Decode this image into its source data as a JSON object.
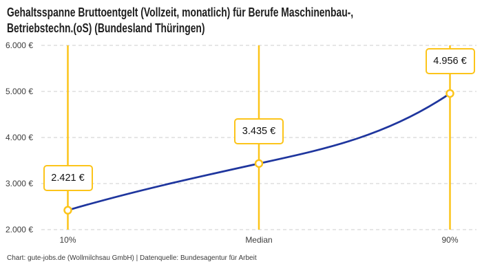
{
  "header": {
    "title_line1": "Gehaltsspanne Bruttoentgelt (Vollzeit, monatlich) für Berufe Maschinenbau-,",
    "title_line2": "Betriebstechn.(oS) (Bundesland Thüringen)"
  },
  "footer": {
    "credit": "Chart: gute-jobs.de (Wollmilchsau GmbH) | Datenquelle: Bundesagentur für Arbeit"
  },
  "chart_data": {
    "type": "line",
    "subtype": "spline",
    "title": "Gehaltsspanne Bruttoentgelt (Vollzeit, monatlich) für Berufe Maschinenbau-, Betriebstechn.(oS) (Bundesland Thüringen)",
    "categories": [
      "10%",
      "Median",
      "90%"
    ],
    "values": [
      2421,
      3435,
      4956
    ],
    "value_labels": [
      "2.421 €",
      "3.435 €",
      "4.956 €"
    ],
    "xlabel": "",
    "ylabel": "",
    "ylim": [
      2000,
      6000
    ],
    "y_tick_values": [
      6000,
      5000,
      4000,
      3000,
      2000
    ],
    "y_tick_labels": [
      "6.000 €",
      "5.000 €",
      "4.000 €",
      "3.000 €",
      "2.000 €"
    ],
    "grid": "horizontal-dashed",
    "legend": "none",
    "annotations": "value boxes above each point, connected by vertical percentile lines",
    "colors": {
      "line": "#1f369e",
      "accent": "#fcc419",
      "grid_line": "#cdcdcd",
      "marker_fill": "#ffffff",
      "box_background": "#ffffff",
      "text": "#1e1e1e",
      "axis_text": "#3c3c3c"
    }
  }
}
